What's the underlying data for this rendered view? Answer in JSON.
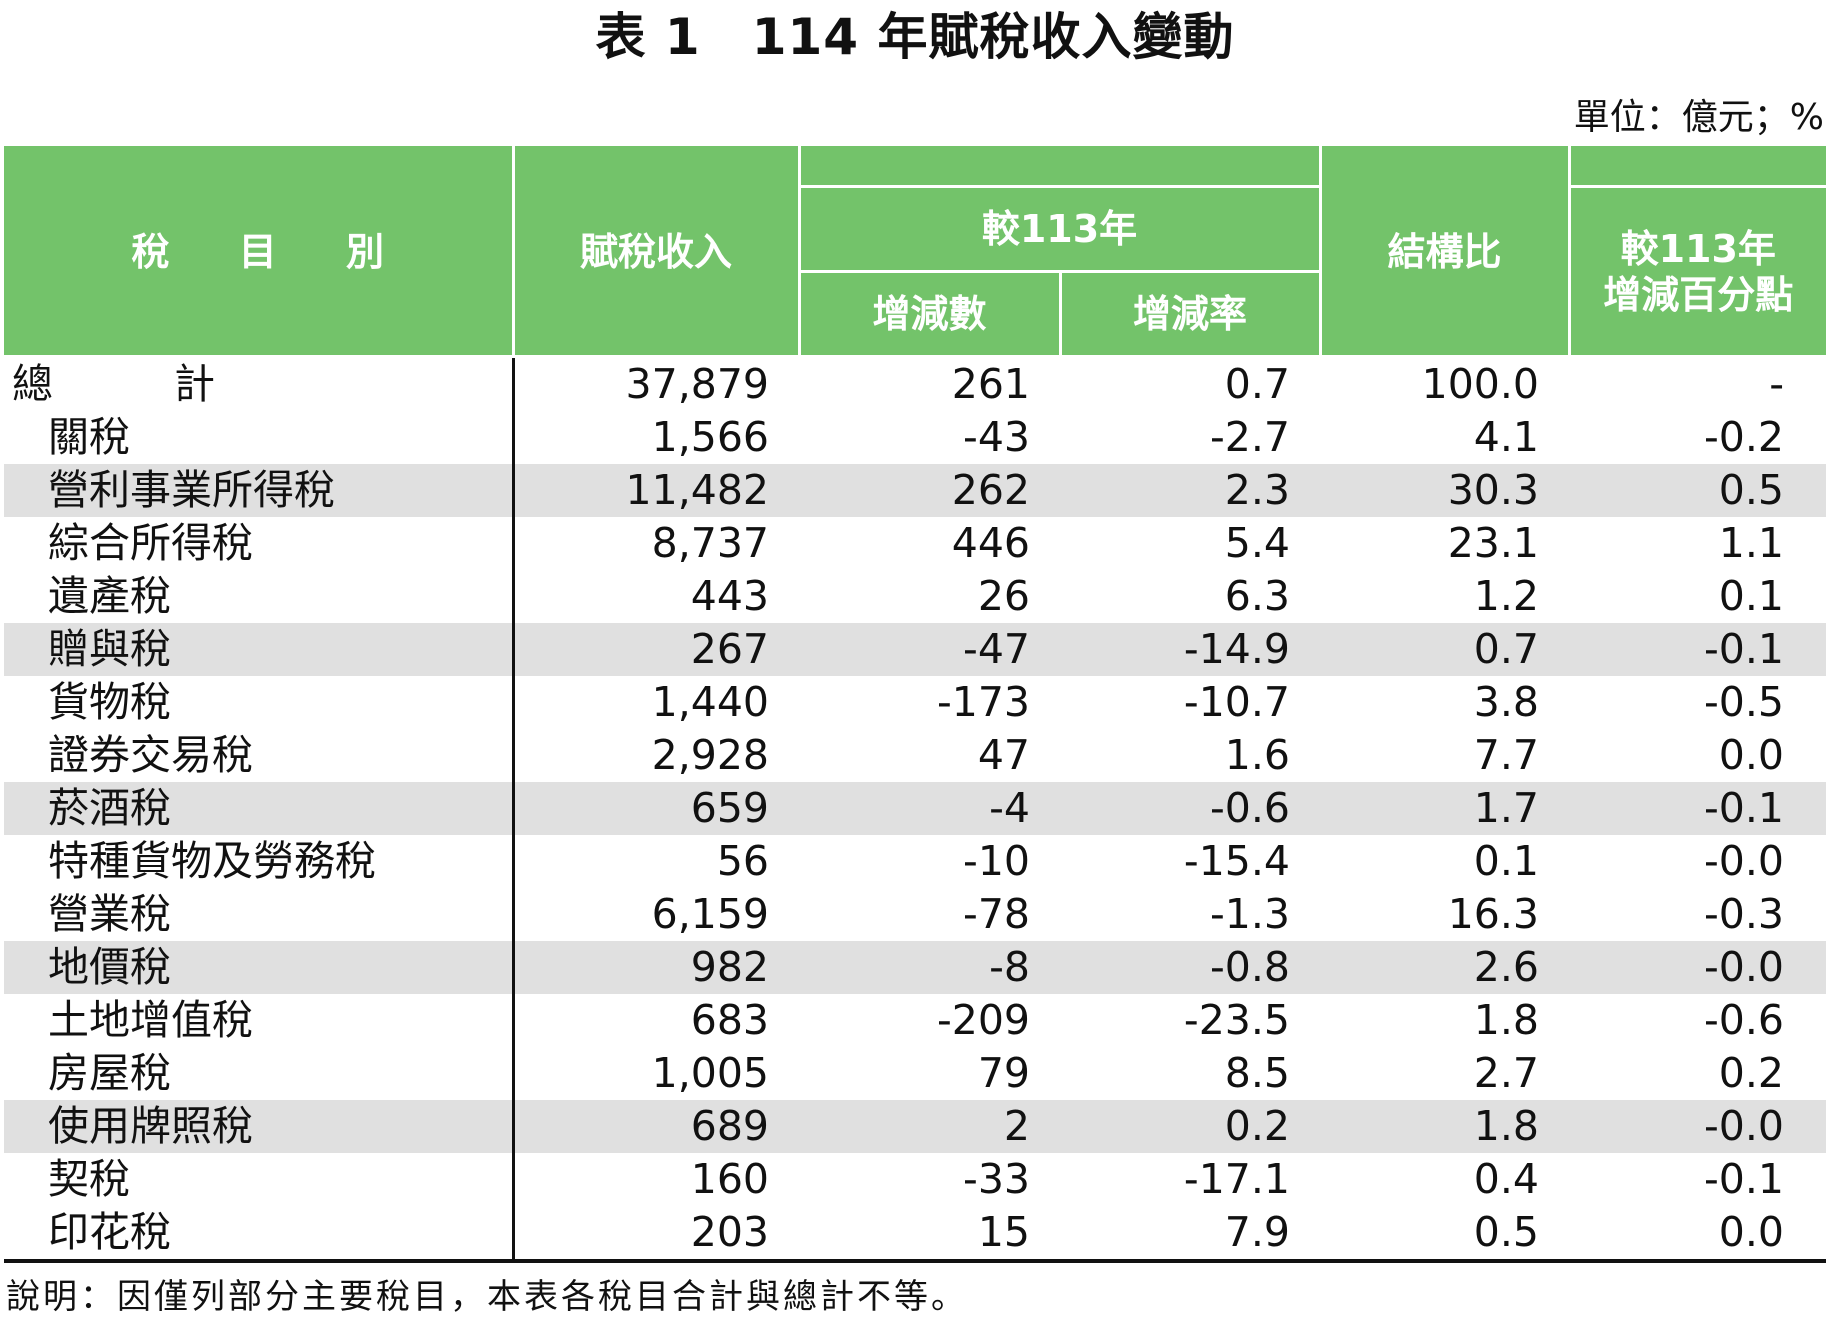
{
  "title": "表 1　114 年賦稅收入變動",
  "unit": "單位：億元；%",
  "headers": {
    "category": "稅 目 別",
    "revenue": "賦稅收入",
    "vs113": "較113年",
    "change_amount": "增減數",
    "change_rate": "增減率",
    "structure": "結構比",
    "pp_change_line1": "較113年",
    "pp_change_line2": "增減百分點"
  },
  "colors": {
    "header_green": "#73c36a",
    "header_text": "#ffffff",
    "row_shade": "#e0e0e0"
  },
  "rows": [
    {
      "name": "總　計",
      "revenue": "37,879",
      "change": "261",
      "rate": "0.7",
      "share": "100.0",
      "pp": "-"
    },
    {
      "name": "關稅",
      "revenue": "1,566",
      "change": "-43",
      "rate": "-2.7",
      "share": "4.1",
      "pp": "-0.2"
    },
    {
      "name": "營利事業所得稅",
      "revenue": "11,482",
      "change": "262",
      "rate": "2.3",
      "share": "30.3",
      "pp": "0.5"
    },
    {
      "name": "綜合所得稅",
      "revenue": "8,737",
      "change": "446",
      "rate": "5.4",
      "share": "23.1",
      "pp": "1.1"
    },
    {
      "name": "遺產稅",
      "revenue": "443",
      "change": "26",
      "rate": "6.3",
      "share": "1.2",
      "pp": "0.1"
    },
    {
      "name": "贈與稅",
      "revenue": "267",
      "change": "-47",
      "rate": "-14.9",
      "share": "0.7",
      "pp": "-0.1"
    },
    {
      "name": "貨物稅",
      "revenue": "1,440",
      "change": "-173",
      "rate": "-10.7",
      "share": "3.8",
      "pp": "-0.5"
    },
    {
      "name": "證券交易稅",
      "revenue": "2,928",
      "change": "47",
      "rate": "1.6",
      "share": "7.7",
      "pp": "0.0"
    },
    {
      "name": "菸酒稅",
      "revenue": "659",
      "change": "-4",
      "rate": "-0.6",
      "share": "1.7",
      "pp": "-0.1"
    },
    {
      "name": "特種貨物及勞務稅",
      "revenue": "56",
      "change": "-10",
      "rate": "-15.4",
      "share": "0.1",
      "pp": "-0.0"
    },
    {
      "name": "營業稅",
      "revenue": "6,159",
      "change": "-78",
      "rate": "-1.3",
      "share": "16.3",
      "pp": "-0.3"
    },
    {
      "name": "地價稅",
      "revenue": "982",
      "change": "-8",
      "rate": "-0.8",
      "share": "2.6",
      "pp": "-0.0"
    },
    {
      "name": "土地增值稅",
      "revenue": "683",
      "change": "-209",
      "rate": "-23.5",
      "share": "1.8",
      "pp": "-0.6"
    },
    {
      "name": "房屋稅",
      "revenue": "1,005",
      "change": "79",
      "rate": "8.5",
      "share": "2.7",
      "pp": "0.2"
    },
    {
      "name": "使用牌照稅",
      "revenue": "689",
      "change": "2",
      "rate": "0.2",
      "share": "1.8",
      "pp": "-0.0"
    },
    {
      "name": "契稅",
      "revenue": "160",
      "change": "-33",
      "rate": "-17.1",
      "share": "0.4",
      "pp": "-0.1"
    },
    {
      "name": "印花稅",
      "revenue": "203",
      "change": "15",
      "rate": "7.9",
      "share": "0.5",
      "pp": "0.0"
    }
  ],
  "note": "說明：因僅列部分主要稅目，本表各稅目合計與總計不等。"
}
